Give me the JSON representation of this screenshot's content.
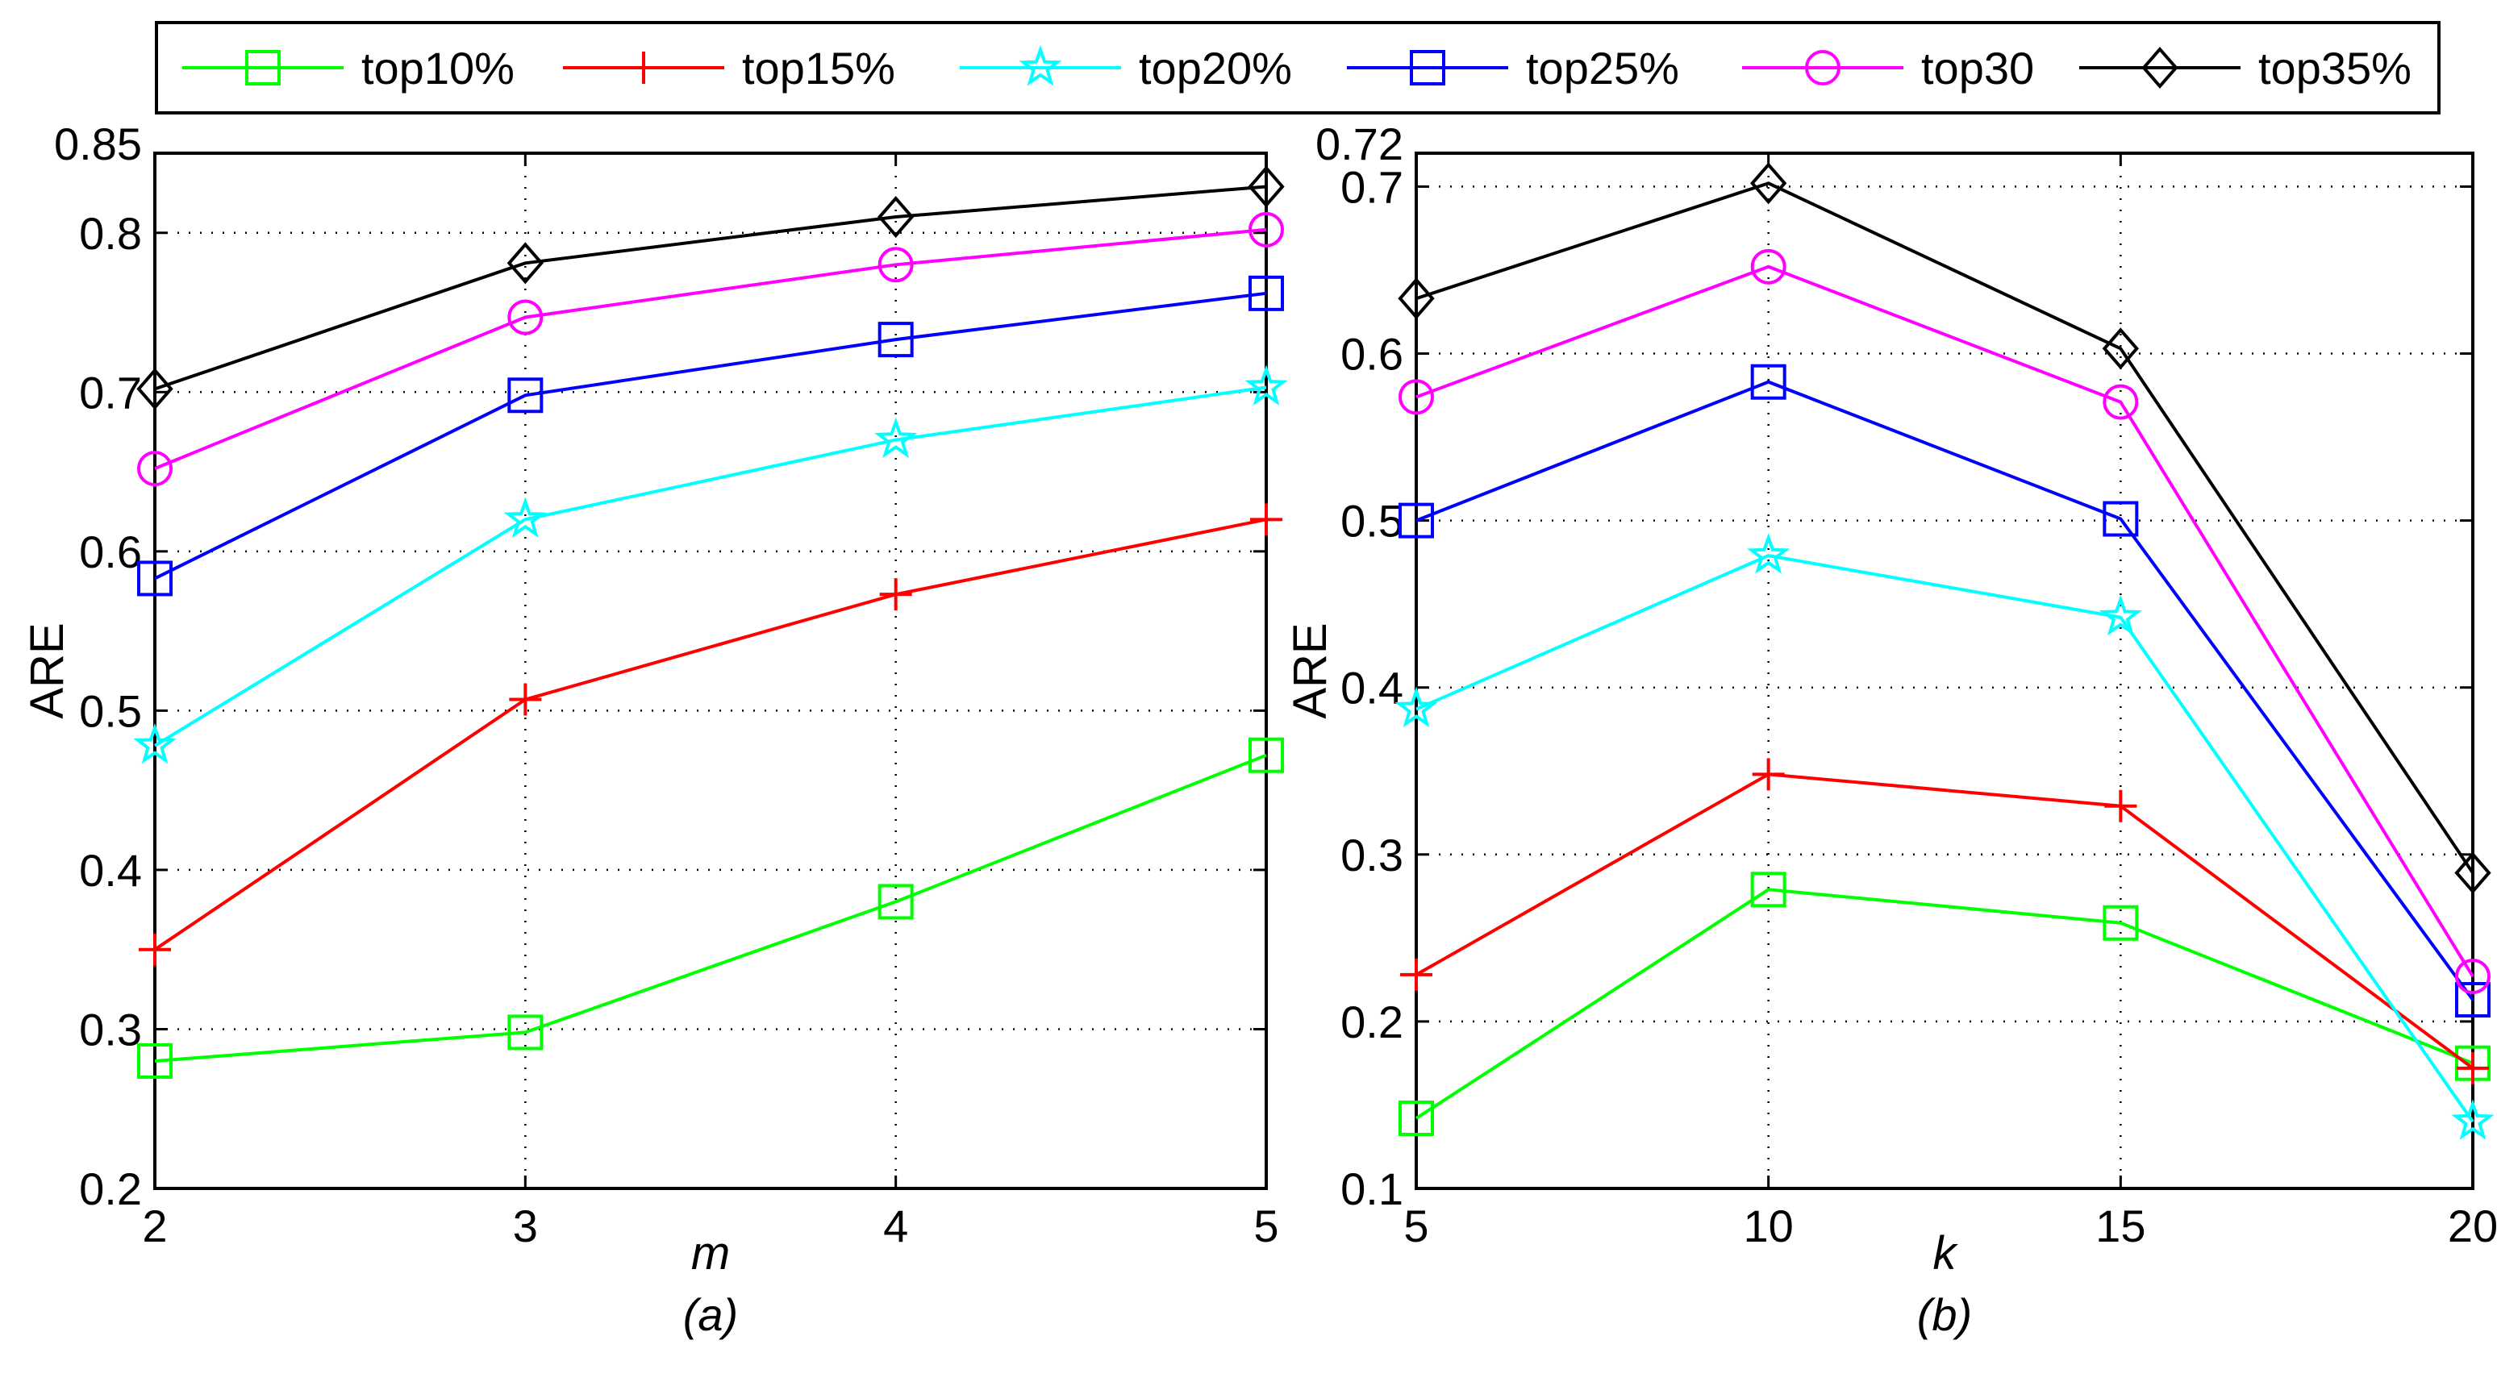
{
  "legend": [
    {
      "label": "top10%",
      "color": "#00ff00",
      "marker": "square"
    },
    {
      "label": "top15%",
      "color": "#ff0000",
      "marker": "plus"
    },
    {
      "label": "top20%",
      "color": "#00ffff",
      "marker": "star"
    },
    {
      "label": "top25%",
      "color": "#0000ff",
      "marker": "square"
    },
    {
      "label": "top30",
      "color": "#ff00ff",
      "marker": "circle"
    },
    {
      "label": "top35%",
      "color": "#000000",
      "marker": "diamond"
    }
  ],
  "chart_data": [
    {
      "type": "line",
      "title": "",
      "xlabel": "m",
      "ylabel": "ARE",
      "subplot_label": "(a)",
      "x": [
        2,
        3,
        4,
        5
      ],
      "x_ticks": [
        "2",
        "3",
        "4",
        "5"
      ],
      "xlim": [
        2,
        5
      ],
      "ylim": [
        0.2,
        0.85
      ],
      "y_ticks": [
        "0.2",
        "0.3",
        "0.4",
        "0.5",
        "0.6",
        "0.7",
        "0.8",
        "0.85"
      ],
      "grid": true,
      "series": [
        {
          "name": "top10%",
          "values": [
            0.28,
            0.298,
            0.38,
            0.472
          ]
        },
        {
          "name": "top15%",
          "values": [
            0.35,
            0.507,
            0.573,
            0.62
          ]
        },
        {
          "name": "top20%",
          "values": [
            0.478,
            0.62,
            0.67,
            0.703
          ]
        },
        {
          "name": "top25%",
          "values": [
            0.583,
            0.698,
            0.733,
            0.762
          ]
        },
        {
          "name": "top30",
          "values": [
            0.652,
            0.747,
            0.78,
            0.802
          ]
        },
        {
          "name": "top35%",
          "values": [
            0.702,
            0.781,
            0.81,
            0.829
          ]
        }
      ]
    },
    {
      "type": "line",
      "title": "",
      "xlabel": "k",
      "ylabel": "ARE",
      "subplot_label": "(b)",
      "x": [
        5,
        10,
        15,
        20
      ],
      "x_ticks": [
        "5",
        "10",
        "15",
        "20"
      ],
      "xlim": [
        5,
        20
      ],
      "ylim": [
        0.1,
        0.72
      ],
      "y_ticks": [
        "0.1",
        "0.2",
        "0.3",
        "0.4",
        "0.5",
        "0.6",
        "0.7",
        "0.72"
      ],
      "grid": true,
      "series": [
        {
          "name": "top10%",
          "values": [
            0.142,
            0.279,
            0.259,
            0.175
          ]
        },
        {
          "name": "top15%",
          "values": [
            0.228,
            0.348,
            0.329,
            0.172
          ]
        },
        {
          "name": "top20%",
          "values": [
            0.387,
            0.479,
            0.442,
            0.14
          ]
        },
        {
          "name": "top25%",
          "values": [
            0.5,
            0.583,
            0.501,
            0.213
          ]
        },
        {
          "name": "top30",
          "values": [
            0.574,
            0.652,
            0.571,
            0.227
          ]
        },
        {
          "name": "top35%",
          "values": [
            0.633,
            0.702,
            0.603,
            0.289
          ]
        }
      ]
    }
  ]
}
